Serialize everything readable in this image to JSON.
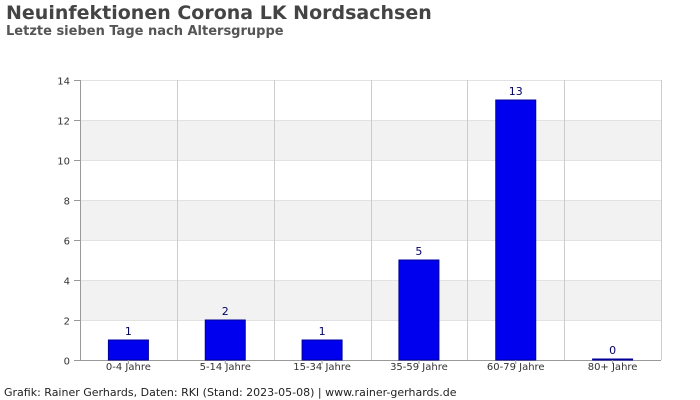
{
  "title": "Neuinfektionen Corona LK Nordsachsen",
  "subtitle": "Letzte sieben Tage nach Altersgruppe",
  "footer": "Grafik: Rainer Gerhards, Daten: RKI (Stand: 2023-05-08) | www.rainer-gerhards.de",
  "chart_data": {
    "type": "bar",
    "categories": [
      "0-4 Jahre",
      "5-14 Jahre",
      "15-34 Jahre",
      "35-59 Jahre",
      "60-79 Jahre",
      "80+ Jahre"
    ],
    "values": [
      1,
      2,
      1,
      5,
      13,
      0
    ],
    "ylim": [
      0,
      14
    ],
    "yticks": [
      0,
      2,
      4,
      6,
      8,
      10,
      12,
      14
    ],
    "grid": true,
    "legend": "none",
    "bar_color": "#0000ee",
    "bar_border_color": "#000099",
    "band_color": "#f2f2f2",
    "data_label_color": "#000066"
  }
}
